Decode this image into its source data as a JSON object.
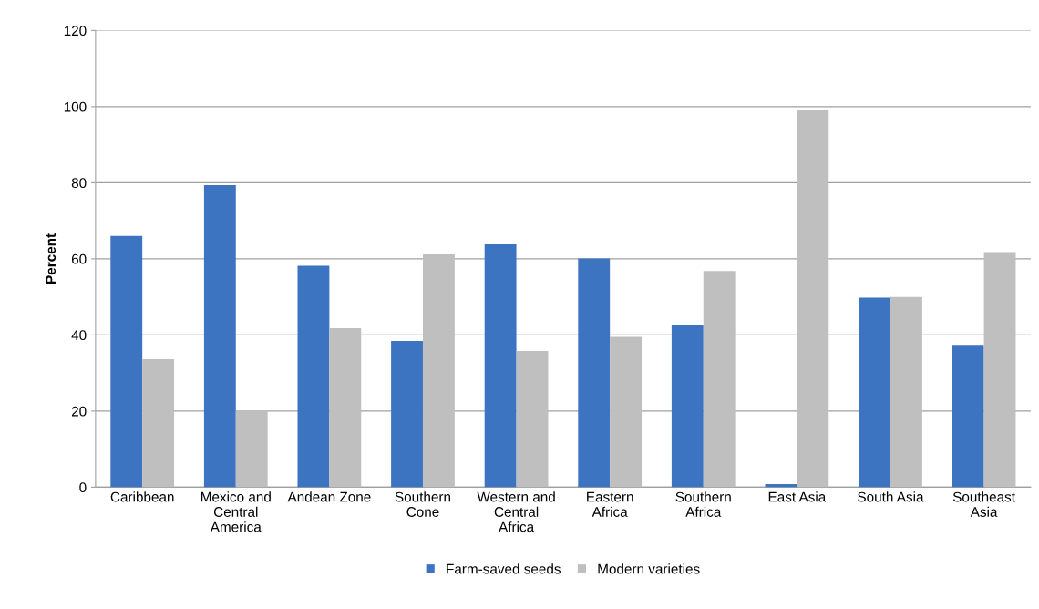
{
  "chart_data": {
    "type": "bar",
    "ylabel": "Percent",
    "categories": [
      "Caribbean",
      "Mexico and\nCentral\nAmerica",
      "Andean Zone",
      "Southern\nCone",
      "Western and\nCentral\nAfrica",
      "Eastern\nAfrica",
      "Southern\nAfrica",
      "East Asia",
      "South Asia",
      "Southeast\nAsia"
    ],
    "series": [
      {
        "name": "Farm-saved seeds",
        "color": "#3d74c2",
        "values": [
          66,
          79.4,
          58.2,
          38.4,
          63.8,
          60.1,
          42.6,
          0.8,
          49.8,
          37.4
        ]
      },
      {
        "name": "Modern varieties",
        "color": "#bfbfbf",
        "values": [
          33.6,
          20.2,
          41.8,
          61.2,
          35.8,
          39.5,
          56.8,
          99.0,
          50,
          61.8
        ]
      }
    ],
    "ylim": [
      0,
      120
    ],
    "yticks": [
      0,
      20,
      40,
      60,
      80,
      100,
      120
    ],
    "grid": "y",
    "legend": "bottom"
  }
}
